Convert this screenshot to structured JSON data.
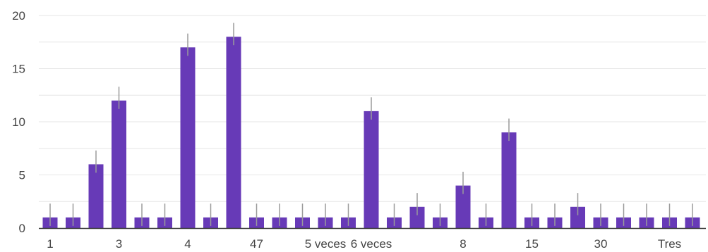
{
  "chart_data": {
    "type": "bar",
    "title": "",
    "xlabel": "",
    "ylabel": "",
    "ylim": [
      0,
      20
    ],
    "yticks": [
      0,
      5,
      10,
      15,
      20
    ],
    "grid": true,
    "bar_color": "#673ab7",
    "error_color": "#9a9a9a",
    "error_plus": 1.3,
    "categories": [
      "1",
      "",
      "",
      "3",
      "",
      "",
      "4",
      "",
      "",
      "47",
      "",
      "",
      "5 veces",
      "",
      "6 veces",
      "",
      "",
      "",
      "8",
      "",
      "",
      "15",
      "",
      "",
      "30",
      "",
      "",
      "Tres",
      ""
    ],
    "values": [
      1,
      1,
      6,
      12,
      1,
      1,
      17,
      1,
      18,
      1,
      1,
      1,
      1,
      1,
      11,
      1,
      2,
      1,
      4,
      1,
      9,
      1,
      1,
      2,
      1,
      1,
      1,
      1,
      1
    ],
    "x_tick_labels": [
      {
        "label": "1",
        "index": 0
      },
      {
        "label": "3",
        "index": 3
      },
      {
        "label": "4",
        "index": 6
      },
      {
        "label": "47",
        "index": 9
      },
      {
        "label": "5 veces",
        "index": 12
      },
      {
        "label": "6 veces",
        "index": 14
      },
      {
        "label": "8",
        "index": 18
      },
      {
        "label": "15",
        "index": 21
      },
      {
        "label": "30",
        "index": 24
      },
      {
        "label": "Tres",
        "index": 27
      }
    ]
  }
}
